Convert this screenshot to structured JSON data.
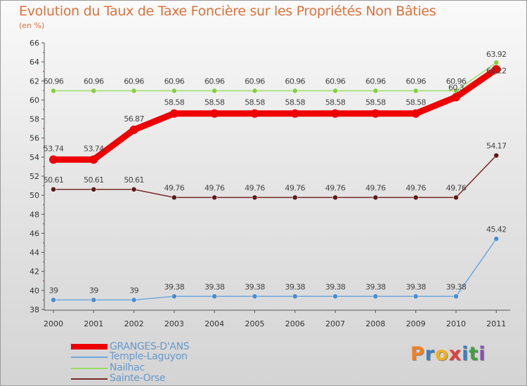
{
  "header": {
    "title": "Evolution du Taux de Taxe Foncière sur les Propriétés Non Bâties",
    "unit": "(en %)"
  },
  "chart_data": {
    "type": "line",
    "title": "Evolution du Taux de Taxe Foncière sur les Propriétés Non Bâties",
    "ylabel": "(en %)",
    "xlabel": "",
    "x": [
      "2000",
      "2001",
      "2002",
      "2003",
      "2004",
      "2005",
      "2006",
      "2007",
      "2008",
      "2009",
      "2010",
      "2011"
    ],
    "ylim": [
      38,
      66
    ],
    "yticks": [
      "38",
      "40",
      "42",
      "44",
      "46",
      "48",
      "50",
      "52",
      "54",
      "56",
      "58",
      "60",
      "62",
      "64",
      "66"
    ],
    "series": [
      {
        "name": "GRANGES-D'ANS",
        "color": "#ee0000",
        "values": [
          53.74,
          53.74,
          56.87,
          58.58,
          58.58,
          58.58,
          58.58,
          58.58,
          58.58,
          58.58,
          60.3,
          63.22
        ],
        "labels": [
          "53.74",
          "53.74",
          "56.87",
          "58.58",
          "58.58",
          "58.58",
          "58.58",
          "58.58",
          "58.58",
          "58.58",
          "60.3",
          "63.22"
        ]
      },
      {
        "name": "Temple-Laguyon",
        "color": "#6fa8dc",
        "values": [
          39,
          39,
          39,
          39.38,
          39.38,
          39.38,
          39.38,
          39.38,
          39.38,
          39.38,
          39.38,
          45.42
        ],
        "labels": [
          "39",
          "39",
          "39",
          "39.38",
          "39.38",
          "39.38",
          "39.38",
          "39.38",
          "39.38",
          "39.38",
          "39.38",
          "45.42"
        ]
      },
      {
        "name": "Nailhac",
        "color": "#99dd66",
        "values": [
          60.96,
          60.96,
          60.96,
          60.96,
          60.96,
          60.96,
          60.96,
          60.96,
          60.96,
          60.96,
          60.96,
          63.92
        ],
        "labels": [
          "60.96",
          "60.96",
          "60.96",
          "60.96",
          "60.96",
          "60.96",
          "60.96",
          "60.96",
          "60.96",
          "60.96",
          "60.96",
          "63.92"
        ]
      },
      {
        "name": "Sainte-Orse",
        "color": "#7a2a2a",
        "values": [
          50.61,
          50.61,
          50.61,
          49.76,
          49.76,
          49.76,
          49.76,
          49.76,
          49.76,
          49.76,
          49.76,
          54.17
        ],
        "labels": [
          "50.61",
          "50.61",
          "50.61",
          "49.76",
          "49.76",
          "49.76",
          "49.76",
          "49.76",
          "49.76",
          "49.76",
          "49.76",
          "54.17"
        ]
      }
    ],
    "legend_position": "bottom-left"
  },
  "legend": {
    "items": [
      "GRANGES-D'ANS",
      "Temple-Laguyon",
      "Nailhac",
      "Sainte-Orse"
    ]
  },
  "logo": {
    "letters": [
      "P",
      "r",
      "o",
      "x",
      "i",
      "t",
      "i"
    ],
    "colors": [
      "#f08020",
      "#3a7fc4",
      "#f0b020",
      "#e04040",
      "#3a7fc4",
      "#40a040",
      "#8a50b0"
    ]
  }
}
